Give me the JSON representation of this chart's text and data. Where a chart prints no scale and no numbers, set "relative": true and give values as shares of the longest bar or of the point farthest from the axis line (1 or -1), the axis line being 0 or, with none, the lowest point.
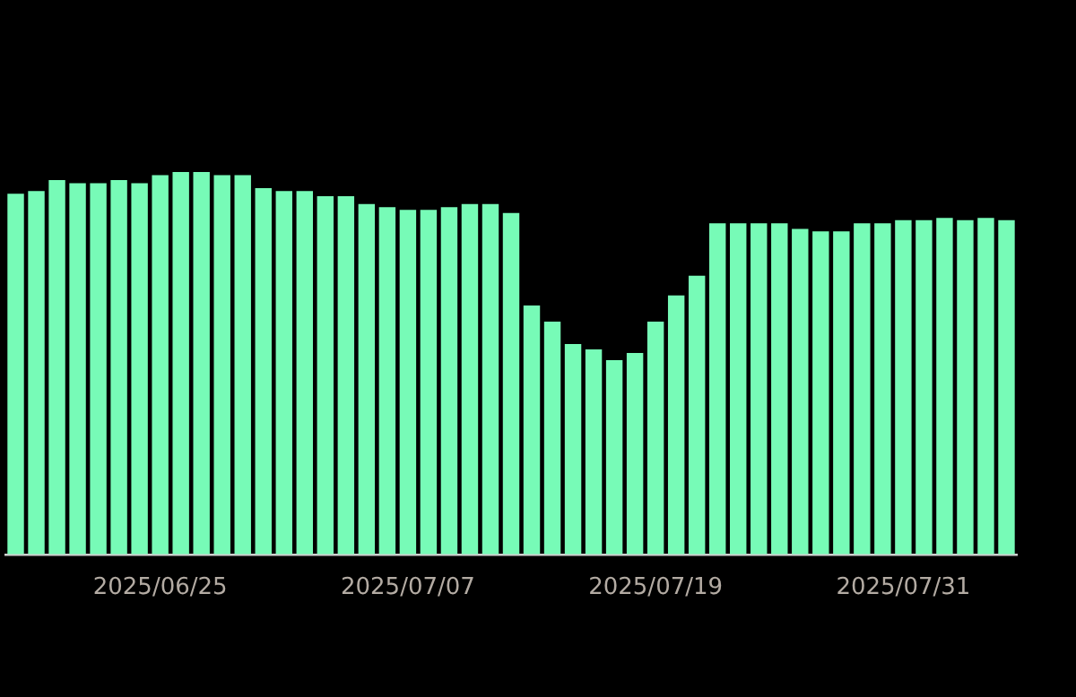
{
  "chart_data": {
    "type": "bar",
    "relative": true,
    "color": "#77fbb7",
    "categories": [
      null,
      null,
      null,
      null,
      null,
      null,
      null,
      "2025/06/25",
      null,
      null,
      null,
      null,
      null,
      null,
      null,
      null,
      null,
      null,
      null,
      "2025/07/07",
      null,
      null,
      null,
      null,
      null,
      null,
      null,
      null,
      null,
      null,
      null,
      "2025/07/19",
      null,
      null,
      null,
      null,
      null,
      null,
      null,
      null,
      null,
      null,
      null,
      "2025/07/31",
      null,
      null,
      null,
      null,
      null
    ],
    "values": [
      0.943,
      0.95,
      0.979,
      0.971,
      0.971,
      0.979,
      0.971,
      0.992,
      1,
      1,
      0.992,
      0.992,
      0.958,
      0.95,
      0.95,
      0.937,
      0.937,
      0.916,
      0.908,
      0.901,
      0.901,
      0.908,
      0.916,
      0.916,
      0.893,
      0.651,
      0.609,
      0.55,
      0.536,
      0.508,
      0.527,
      0.609,
      0.677,
      0.729,
      0.866,
      0.866,
      0.866,
      0.866,
      0.851,
      0.845,
      0.845,
      0.866,
      0.866,
      0.874,
      0.874,
      0.88,
      0.874,
      0.88,
      0.874
    ]
  }
}
